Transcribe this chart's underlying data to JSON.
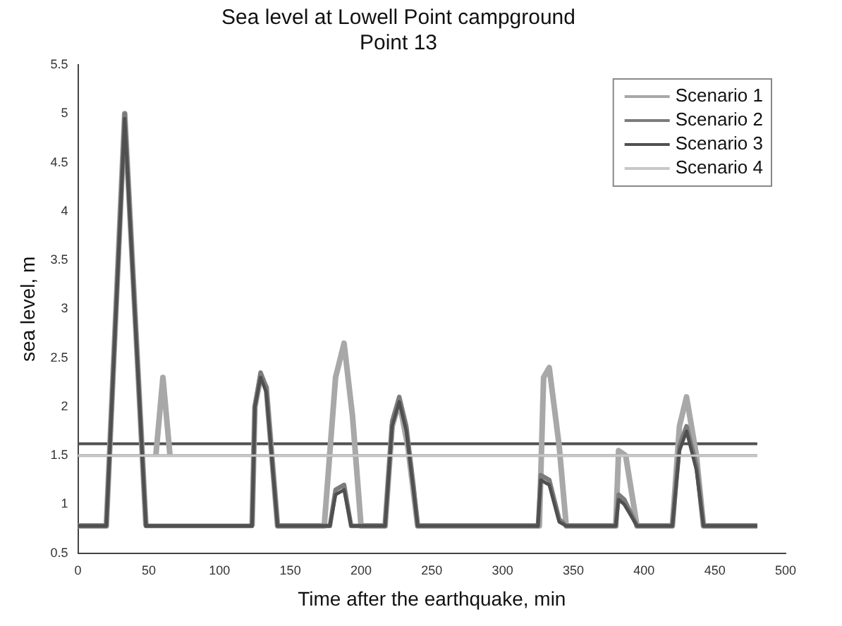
{
  "chart_data": {
    "type": "line",
    "title": "Sea level at Lowell Point campground",
    "subtitle": "Point 13",
    "xlabel": "Time after the earthquake, min",
    "ylabel": "sea level, m",
    "xlim": [
      0,
      500
    ],
    "xticks": [
      0,
      50,
      100,
      150,
      200,
      250,
      300,
      350,
      400,
      450,
      500
    ],
    "ylim": [
      0.5,
      5.5
    ],
    "yticks": [
      0.5,
      1,
      1.5,
      2,
      2.5,
      3,
      3.5,
      4,
      4.5,
      5,
      5.5
    ],
    "grid": false,
    "legend": "top right",
    "marker": "none",
    "line_style": "solid",
    "ref_lines": [
      {
        "axis": "y",
        "value": 1.62,
        "color": "#505050"
      },
      {
        "axis": "y",
        "value": 1.5,
        "color": "#9a9a9a"
      }
    ],
    "series": [
      {
        "name": "Scenario 1",
        "color": "#a8a8a8",
        "x": [
          0,
          20,
          33,
          48,
          54,
          55,
          60,
          65,
          66,
          123,
          125,
          129,
          133,
          141,
          174,
          182,
          188,
          194,
          200,
          217,
          222,
          227,
          233,
          240,
          326,
          329,
          333,
          340,
          345,
          380,
          382,
          387,
          395,
          420,
          425,
          430,
          437,
          442,
          480
        ],
        "values": [
          0.78,
          0.78,
          5.0,
          0.78,
          null,
          1.5,
          2.3,
          1.5,
          null,
          0.78,
          2.0,
          2.3,
          2.2,
          0.78,
          0.78,
          2.3,
          2.65,
          1.9,
          0.78,
          0.78,
          1.8,
          2.05,
          1.6,
          0.78,
          0.78,
          2.3,
          2.4,
          1.6,
          0.78,
          0.78,
          1.55,
          1.5,
          0.78,
          0.78,
          1.8,
          2.1,
          1.5,
          0.78,
          0.78
        ]
      },
      {
        "name": "Scenario 2",
        "color": "#7c7c7c",
        "x": [
          0,
          20,
          33,
          48,
          123,
          125,
          129,
          133,
          141,
          178,
          182,
          188,
          193,
          217,
          222,
          227,
          232,
          237,
          240,
          325,
          327,
          333,
          340,
          345,
          380,
          382,
          386,
          395,
          420,
          425,
          430,
          437,
          442,
          480
        ],
        "values": [
          0.78,
          0.78,
          5.0,
          0.78,
          0.78,
          2.0,
          2.35,
          2.2,
          0.78,
          0.78,
          1.15,
          1.2,
          0.78,
          0.78,
          1.85,
          2.1,
          1.8,
          1.2,
          0.78,
          0.78,
          1.3,
          1.25,
          0.85,
          0.78,
          0.78,
          1.1,
          1.05,
          0.78,
          0.78,
          1.6,
          1.8,
          1.4,
          0.78,
          0.78
        ]
      },
      {
        "name": "Scenario 3",
        "color": "#505050",
        "x": [
          0,
          20,
          33,
          48,
          123,
          125,
          129,
          133,
          141,
          178,
          182,
          188,
          193,
          217,
          222,
          227,
          232,
          237,
          240,
          325,
          327,
          333,
          340,
          345,
          380,
          382,
          386,
          395,
          420,
          425,
          430,
          437,
          442,
          480
        ],
        "values": [
          0.78,
          0.78,
          4.95,
          0.78,
          0.78,
          2.0,
          2.3,
          2.15,
          0.78,
          0.78,
          1.1,
          1.15,
          0.78,
          0.78,
          1.8,
          2.05,
          1.75,
          1.15,
          0.78,
          0.78,
          1.25,
          1.2,
          0.82,
          0.78,
          0.78,
          1.05,
          1.0,
          0.78,
          0.78,
          1.55,
          1.75,
          1.35,
          0.78,
          0.78
        ]
      },
      {
        "name": "Scenario 4",
        "color": "#c8c8c8",
        "x": [
          0,
          480
        ],
        "values": [
          1.5,
          1.5
        ]
      }
    ]
  }
}
